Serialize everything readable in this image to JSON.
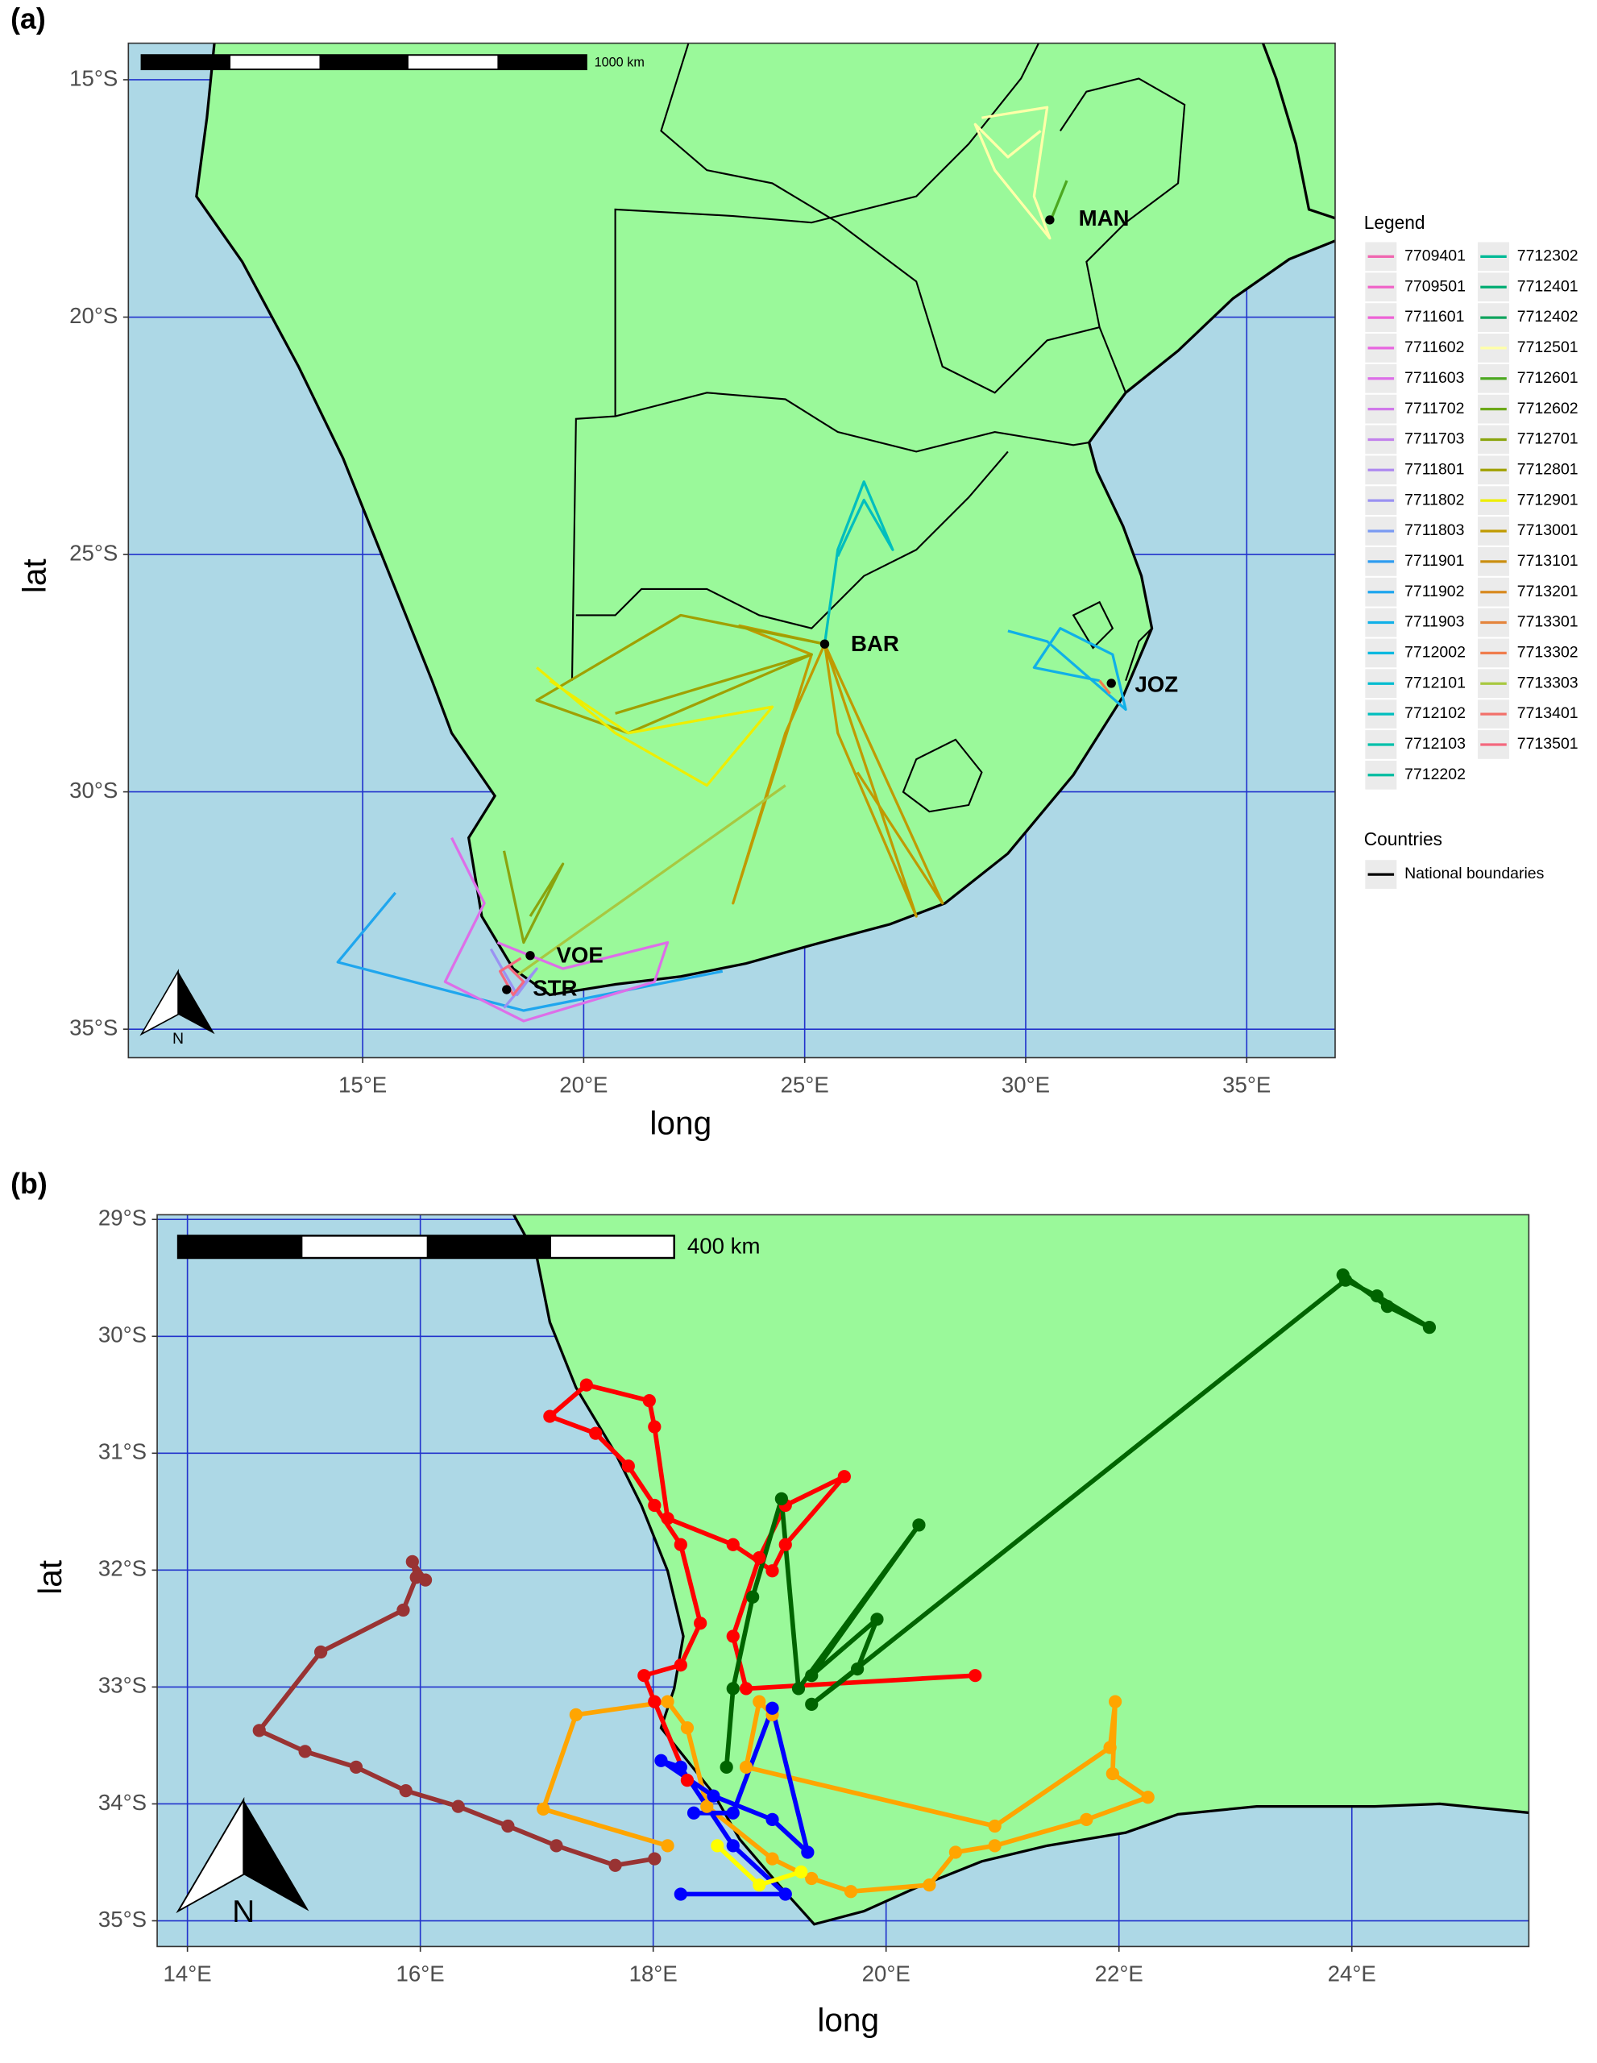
{
  "panels": [
    {
      "label": "(a)",
      "x_axis_title": "long",
      "y_axis_title": "lat",
      "xlim": [
        9.7,
        37.0
      ],
      "ylim": [
        -35.6,
        -14.23
      ],
      "xticks": [
        {
          "value": 15,
          "label": "15°E"
        },
        {
          "value": 20,
          "label": "20°E"
        },
        {
          "value": 25,
          "label": "25°E"
        },
        {
          "value": 30,
          "label": "30°E"
        },
        {
          "value": 35,
          "label": "35°E"
        }
      ],
      "yticks": [
        {
          "value": -15,
          "label": "15°S"
        },
        {
          "value": -20,
          "label": "20°S"
        },
        {
          "value": -25,
          "label": "25°S"
        },
        {
          "value": -30,
          "label": "30°S"
        },
        {
          "value": -35,
          "label": "35°S"
        }
      ],
      "scale_bar": "1000 km",
      "north": "N",
      "grid_color": "#2233CC",
      "sites": [
        "MAN",
        "BAR",
        "JOZ",
        "VOE",
        "STR"
      ],
      "legend": {
        "title": "Legend",
        "entries": [
          {
            "name": "7709401",
            "color": "#F066B0"
          },
          {
            "name": "7709501",
            "color": "#F064C8"
          },
          {
            "name": "7711601",
            "color": "#EE62D6"
          },
          {
            "name": "7711602",
            "color": "#E866E0"
          },
          {
            "name": "7711603",
            "color": "#DD6EE8"
          },
          {
            "name": "7711702",
            "color": "#D078EA"
          },
          {
            "name": "7711703",
            "color": "#C282EC"
          },
          {
            "name": "7711801",
            "color": "#AE8AF0"
          },
          {
            "name": "7711802",
            "color": "#9A92F2"
          },
          {
            "name": "7711803",
            "color": "#7A9AF2"
          },
          {
            "name": "7711901",
            "color": "#2E9CF0"
          },
          {
            "name": "7711902",
            "color": "#1FA6EE"
          },
          {
            "name": "7711903",
            "color": "#10B0E8"
          },
          {
            "name": "7712002",
            "color": "#00B8E0"
          },
          {
            "name": "7712101",
            "color": "#00BCD0"
          },
          {
            "name": "7712102",
            "color": "#00BEBE"
          },
          {
            "name": "7712103",
            "color": "#00C0AA"
          },
          {
            "name": "7712202",
            "color": "#00BCA0"
          },
          {
            "name": "7712302",
            "color": "#00BA96"
          },
          {
            "name": "7712401",
            "color": "#00AC72"
          },
          {
            "name": "7712402",
            "color": "#10A45E"
          },
          {
            "name": "7712501",
            "color": "#FFFFA8"
          },
          {
            "name": "7712601",
            "color": "#4CA820"
          },
          {
            "name": "7712602",
            "color": "#6CA818"
          },
          {
            "name": "7712701",
            "color": "#8AA40E"
          },
          {
            "name": "7712801",
            "color": "#A0A000"
          },
          {
            "name": "7712901",
            "color": "#EEEE00"
          },
          {
            "name": "7713001",
            "color": "#C09A00"
          },
          {
            "name": "7713101",
            "color": "#CA8E10"
          },
          {
            "name": "7713201",
            "color": "#D88A20"
          },
          {
            "name": "7713301",
            "color": "#E4843C"
          },
          {
            "name": "7713302",
            "color": "#F07C4C"
          },
          {
            "name": "7713303",
            "color": "#A8C840"
          },
          {
            "name": "7713401",
            "color": "#F2706A"
          },
          {
            "name": "7713501",
            "color": "#F4687E"
          }
        ]
      },
      "countries_legend": {
        "title": "Countries",
        "entry": "National boundaries"
      }
    },
    {
      "label": "(b)",
      "x_axis_title": "long",
      "y_axis_title": "lat",
      "xlim": [
        13.74,
        25.52
      ],
      "ylim": [
        -35.22,
        -28.96
      ],
      "xticks": [
        {
          "value": 14,
          "label": "14°E"
        },
        {
          "value": 16,
          "label": "16°E"
        },
        {
          "value": 18,
          "label": "18°E"
        },
        {
          "value": 20,
          "label": "20°E"
        },
        {
          "value": 22,
          "label": "22°E"
        },
        {
          "value": 24,
          "label": "24°E"
        }
      ],
      "yticks": [
        {
          "value": -29,
          "label": "29°S"
        },
        {
          "value": -30,
          "label": "30°S"
        },
        {
          "value": -31,
          "label": "31°S"
        },
        {
          "value": -32,
          "label": "32°S"
        },
        {
          "value": -33,
          "label": "33°S"
        },
        {
          "value": -34,
          "label": "34°S"
        },
        {
          "value": -35,
          "label": "35°S"
        }
      ],
      "scale_bar": "400 km",
      "north": "N",
      "grid_color": "#2233CC"
    }
  ]
}
